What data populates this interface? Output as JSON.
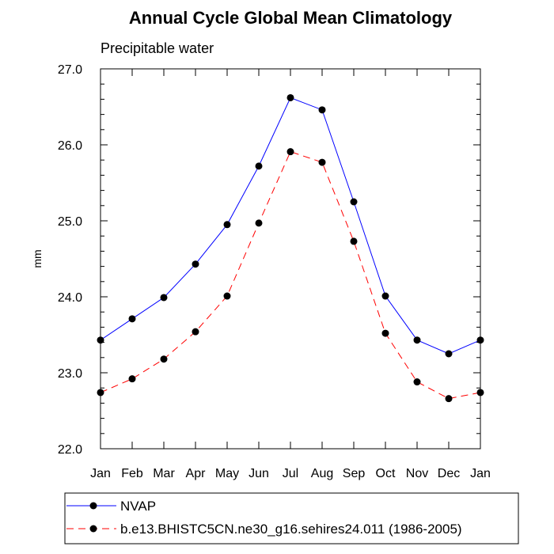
{
  "chart_data": {
    "type": "line",
    "title": "Annual Cycle Global Mean Climatology",
    "subtitle": "Precipitable water",
    "xlabel": "",
    "ylabel": "mm",
    "categories": [
      "Jan",
      "Feb",
      "Mar",
      "Apr",
      "May",
      "Jun",
      "Jul",
      "Aug",
      "Sep",
      "Oct",
      "Nov",
      "Dec",
      "Jan"
    ],
    "ylim": [
      22.0,
      27.0
    ],
    "yticks": [
      "22.0",
      "23.0",
      "24.0",
      "25.0",
      "26.0",
      "27.0"
    ],
    "grid": false,
    "legend_position": "bottom",
    "series": [
      {
        "name": "NVAP",
        "color": "#0000ff",
        "dashed": false,
        "values": [
          23.43,
          23.71,
          23.99,
          24.43,
          24.95,
          25.72,
          26.62,
          26.46,
          25.25,
          24.01,
          23.43,
          23.25,
          23.43
        ]
      },
      {
        "name": "b.e13.BHISTC5CN.ne30_g16.sehires24.011 (1986-2005)",
        "color": "#ff0000",
        "dashed": true,
        "values": [
          22.74,
          22.92,
          23.18,
          23.54,
          24.01,
          24.97,
          25.91,
          25.77,
          24.73,
          23.52,
          22.88,
          22.66,
          22.74
        ]
      }
    ]
  }
}
